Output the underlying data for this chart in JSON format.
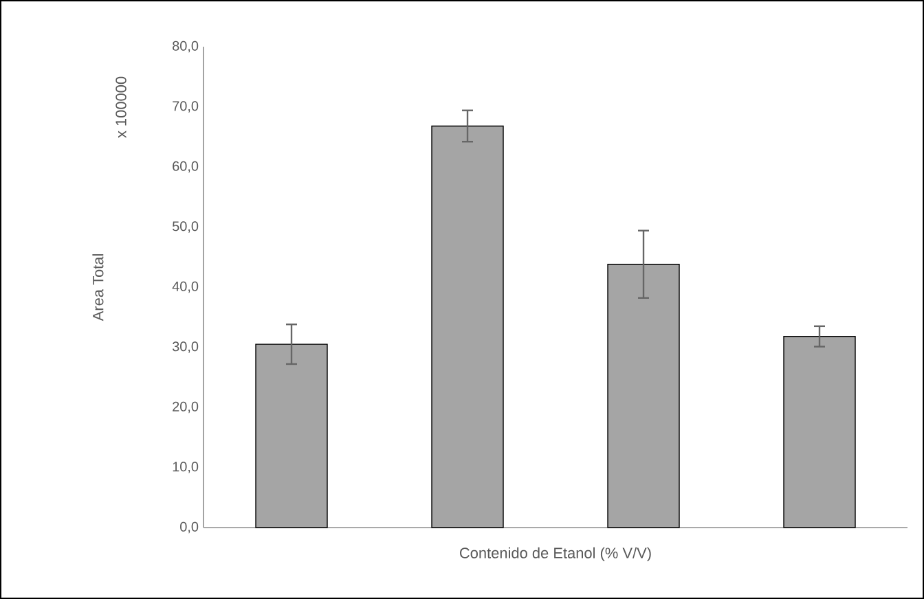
{
  "chart_data": {
    "type": "bar",
    "xlabel": "Contenido de Etanol (% V/V)",
    "ylabel": "Area Total",
    "annotations": [
      "x 100000"
    ],
    "categories": [
      null,
      null,
      null,
      null
    ],
    "values": [
      30.5,
      66.8,
      43.8,
      31.8
    ],
    "errors": [
      3.3,
      2.6,
      5.6,
      1.7
    ],
    "color": "#a5a5a5",
    "ylim": [
      0,
      80
    ],
    "yticks": [
      {
        "value": 0,
        "label": "0,0"
      },
      {
        "value": 10,
        "label": "10,0"
      },
      {
        "value": 20,
        "label": "20,0"
      },
      {
        "value": 30,
        "label": "30,0"
      },
      {
        "value": 40,
        "label": "40,0"
      },
      {
        "value": 50,
        "label": "50,0"
      },
      {
        "value": 60,
        "label": "60,0"
      },
      {
        "value": 70,
        "label": "70,0"
      },
      {
        "value": 80,
        "label": "80,0"
      }
    ],
    "tick_labels": "y",
    "grid": false
  }
}
